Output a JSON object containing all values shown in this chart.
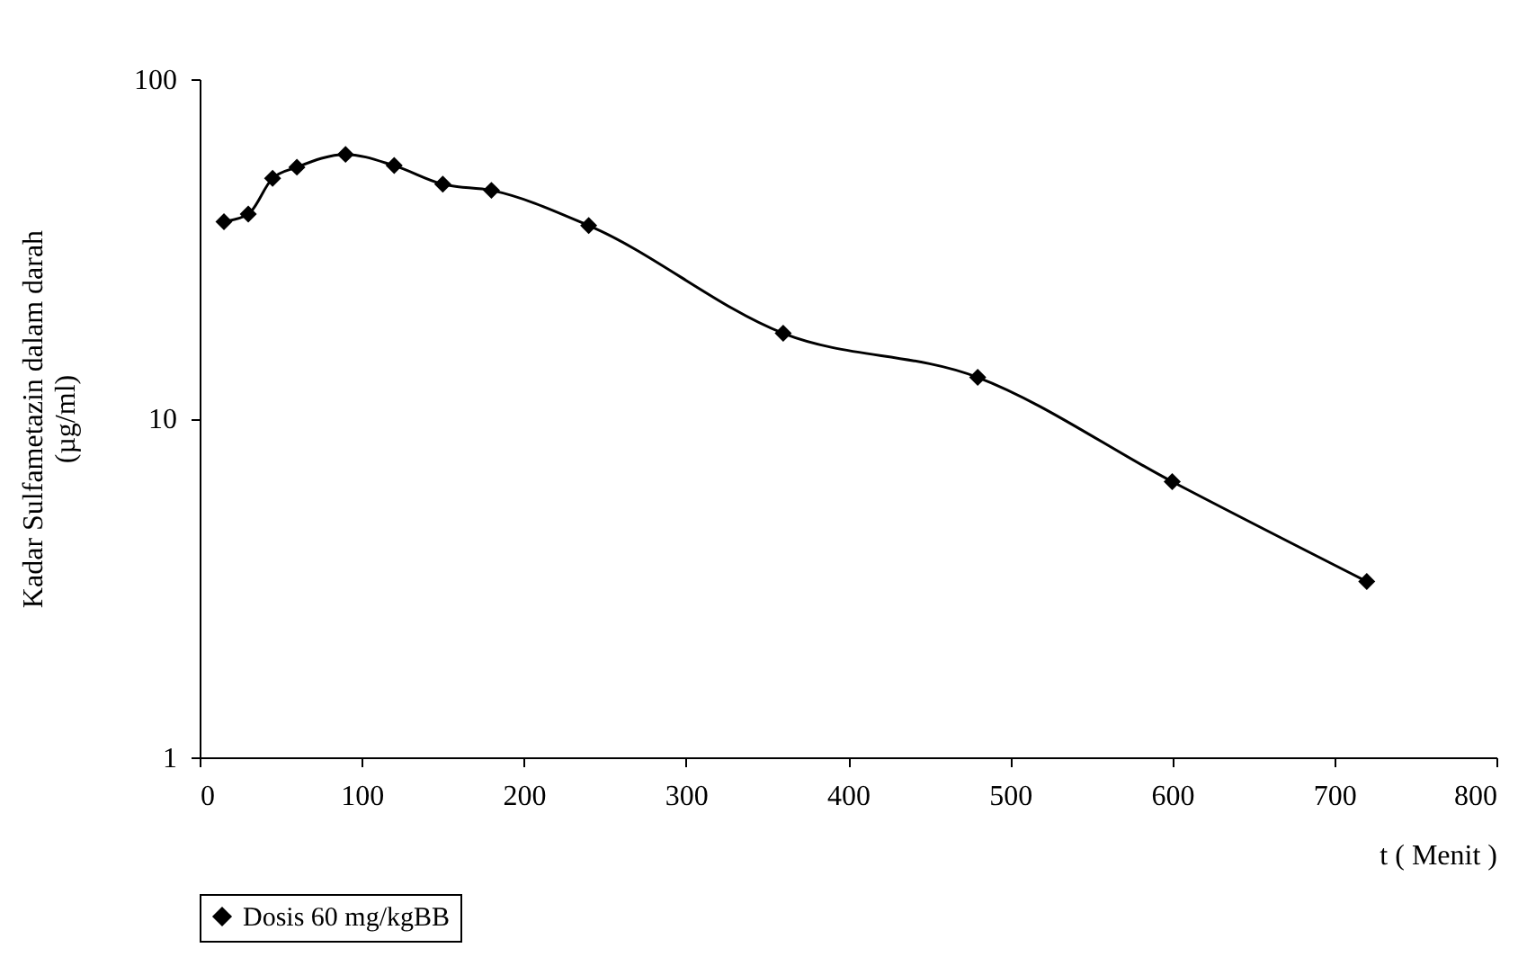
{
  "chart_data": {
    "type": "line",
    "xlabel": "t ( Menit )",
    "ylabel": [
      "Kadar Sulfametazin dalam darah",
      "(µg/ml)"
    ],
    "x": [
      15,
      30,
      45,
      60,
      90,
      120,
      150,
      180,
      240,
      360,
      480,
      600,
      720
    ],
    "series": [
      {
        "name": "Dosis 60 mg/kgBB",
        "color": "#000000",
        "values": [
          38,
          40,
          51,
          55,
          60,
          55.6,
          49,
          47,
          37,
          17.8,
          13.2,
          6.5,
          3.3
        ]
      }
    ],
    "xlim": [
      0,
      800
    ],
    "xticks": [
      0,
      100,
      200,
      300,
      400,
      500,
      600,
      700,
      800
    ],
    "ylim": [
      1,
      100
    ],
    "yticks": [
      1,
      10,
      100
    ],
    "log": true,
    "grid": false,
    "legend": "bottom",
    "marker": "diamond",
    "line_style": "solid"
  }
}
